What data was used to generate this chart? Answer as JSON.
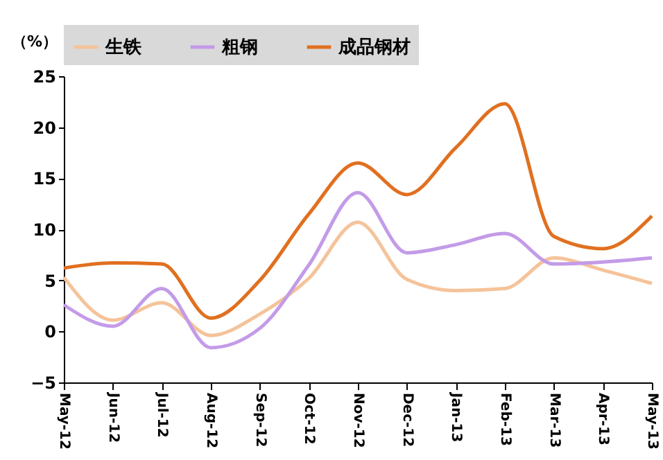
{
  "chart_data": {
    "type": "line",
    "ylabel": "（%）",
    "categories": [
      "May-12",
      "Jun-12",
      "Jul-12",
      "Aug-12",
      "Sep-12",
      "Oct-12",
      "Nov-12",
      "Dec-12",
      "Jan-13",
      "Feb-13",
      "Mar-13",
      "Apr-13",
      "May-13"
    ],
    "series": [
      {
        "name": "生铁",
        "color": "#f5c39a",
        "values": [
          5.3,
          1.1,
          2.8,
          -0.4,
          1.7,
          5.2,
          10.7,
          5.1,
          4.0,
          4.2,
          7.2,
          6.0,
          4.7
        ]
      },
      {
        "name": "粗钢",
        "color": "#c39be8",
        "values": [
          2.6,
          0.5,
          4.2,
          -1.6,
          0.3,
          6.5,
          13.6,
          7.7,
          8.5,
          9.6,
          6.6,
          6.8,
          7.2
        ]
      },
      {
        "name": "成品钢材",
        "color": "#e07020",
        "values": [
          6.2,
          6.7,
          6.6,
          1.3,
          5.0,
          11.5,
          16.5,
          13.4,
          18.0,
          22.3,
          9.3,
          8.1,
          11.3
        ]
      }
    ],
    "ylim": [
      -5,
      25
    ],
    "yticks": [
      -5,
      0,
      5,
      10,
      15,
      20,
      25
    ],
    "grid": false,
    "legend": "top",
    "marker": "none",
    "line_style": "solid"
  }
}
